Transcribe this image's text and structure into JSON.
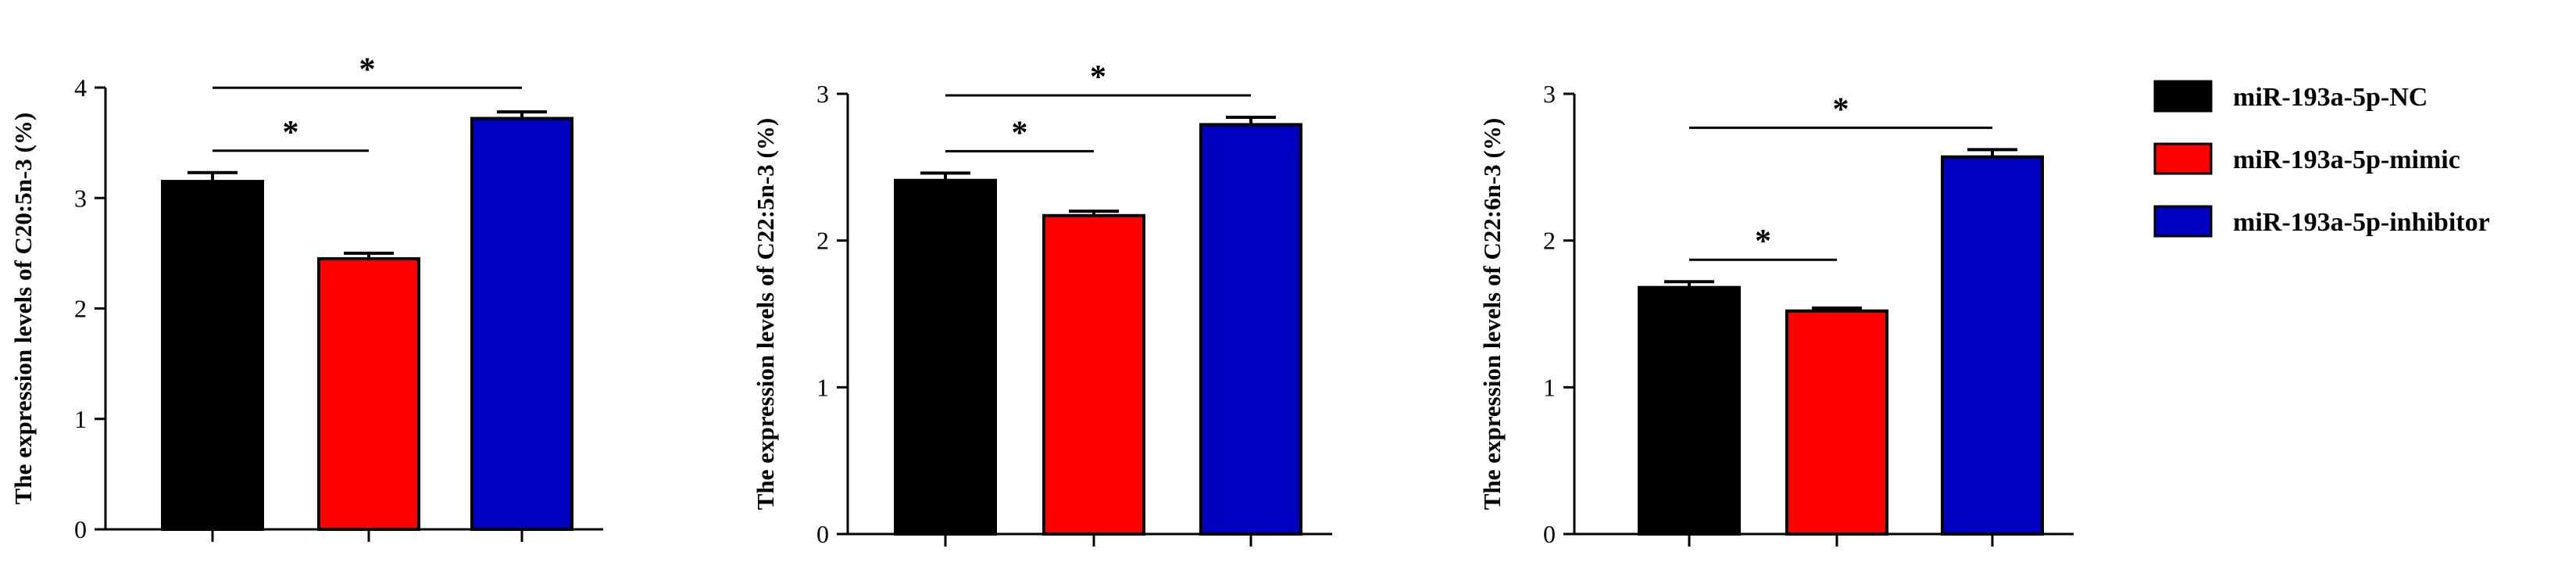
{
  "legend": [
    {
      "label": "miR-193a-5p-NC",
      "color": "#000000"
    },
    {
      "label": "miR-193a-5p-mimic",
      "color": "#ff0000"
    },
    {
      "label": "miR-193a-5p-inhibitor",
      "color": "#0000c0"
    }
  ],
  "chart_data": [
    {
      "type": "bar",
      "categories": [
        "miR-193a-5p-NC",
        "miR-193a-5p-mimic",
        "miR-193a-5p-inhibitor"
      ],
      "values": [
        3.15,
        2.45,
        3.72
      ],
      "errors": [
        0.08,
        0.05,
        0.06
      ],
      "ylabel": "The expression levels of C20:5n-3 (%)",
      "ylim": [
        0,
        4
      ],
      "yticks": [
        "0",
        "1",
        "2",
        "3",
        "4"
      ],
      "significance": [
        {
          "from": 0,
          "to": 1,
          "label": "*"
        },
        {
          "from": 0,
          "to": 2,
          "label": "*"
        }
      ]
    },
    {
      "type": "bar",
      "categories": [
        "miR-193a-5p-NC",
        "miR-193a-5p-mimic",
        "miR-193a-5p-inhibitor"
      ],
      "values": [
        2.41,
        2.17,
        2.79
      ],
      "errors": [
        0.05,
        0.03,
        0.05
      ],
      "ylabel": "The expression levels of C22:5n-3 (%)",
      "ylim": [
        0,
        3
      ],
      "yticks": [
        "0",
        "1",
        "2",
        "3"
      ],
      "significance": [
        {
          "from": 0,
          "to": 1,
          "label": "*"
        },
        {
          "from": 0,
          "to": 2,
          "label": "*"
        }
      ]
    },
    {
      "type": "bar",
      "categories": [
        "miR-193a-5p-NC",
        "miR-193a-5p-mimic",
        "miR-193a-5p-inhibitor"
      ],
      "values": [
        1.68,
        1.52,
        2.57
      ],
      "errors": [
        0.04,
        0.02,
        0.05
      ],
      "ylabel": "The expression levels of C22:6n-3 (%)",
      "ylim": [
        0,
        3
      ],
      "yticks": [
        "0",
        "1",
        "2",
        "3"
      ],
      "significance": [
        {
          "from": 0,
          "to": 1,
          "label": "*"
        },
        {
          "from": 0,
          "to": 2,
          "label": "*"
        }
      ]
    }
  ]
}
